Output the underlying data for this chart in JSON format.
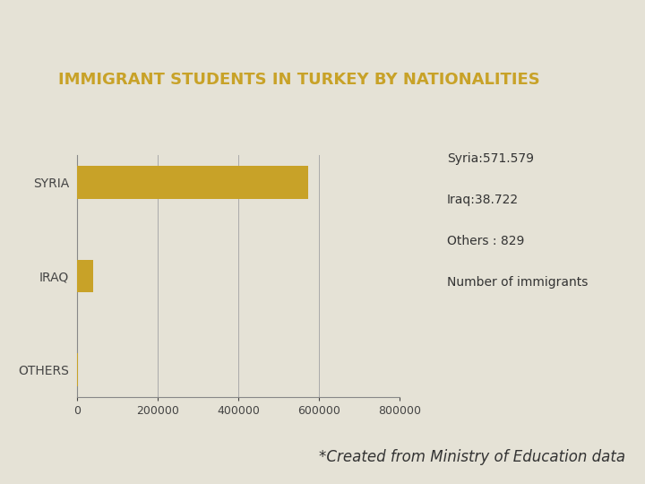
{
  "title": "IMMIGRANT STUDENTS IN TURKEY BY NATIONALITIES",
  "title_color": "#C8A228",
  "header_bg": "#3d4840",
  "body_bg": "#e5e2d6",
  "top_stripe_color": "#C8A228",
  "categories": [
    "OTHERS",
    "IRAQ",
    "SYRIA"
  ],
  "values": [
    829,
    38722,
    571579
  ],
  "bar_color": "#C8A228",
  "xlim": [
    0,
    800000
  ],
  "xticks": [
    0,
    200000,
    400000,
    600000,
    800000
  ],
  "xtick_labels": [
    "0",
    "200000",
    "400000",
    "600000",
    "800000"
  ],
  "legend_entries": [
    {
      "label": "Syria:571.579",
      "color": "#9b6fa0"
    },
    {
      "label": "Iraq:38.722",
      "color": "#6a8fb5"
    },
    {
      "label": "Others : 829",
      "color": "#8a9a2a"
    },
    {
      "label": "Number of immigrants",
      "color": "#C8A228"
    }
  ],
  "footer_text": "*Created from Ministry of Education data",
  "footer_color": "#333333",
  "footer_fontsize": 12,
  "title_fontsize": 13,
  "label_fontsize": 10,
  "tick_fontsize": 9,
  "legend_fontsize": 10
}
